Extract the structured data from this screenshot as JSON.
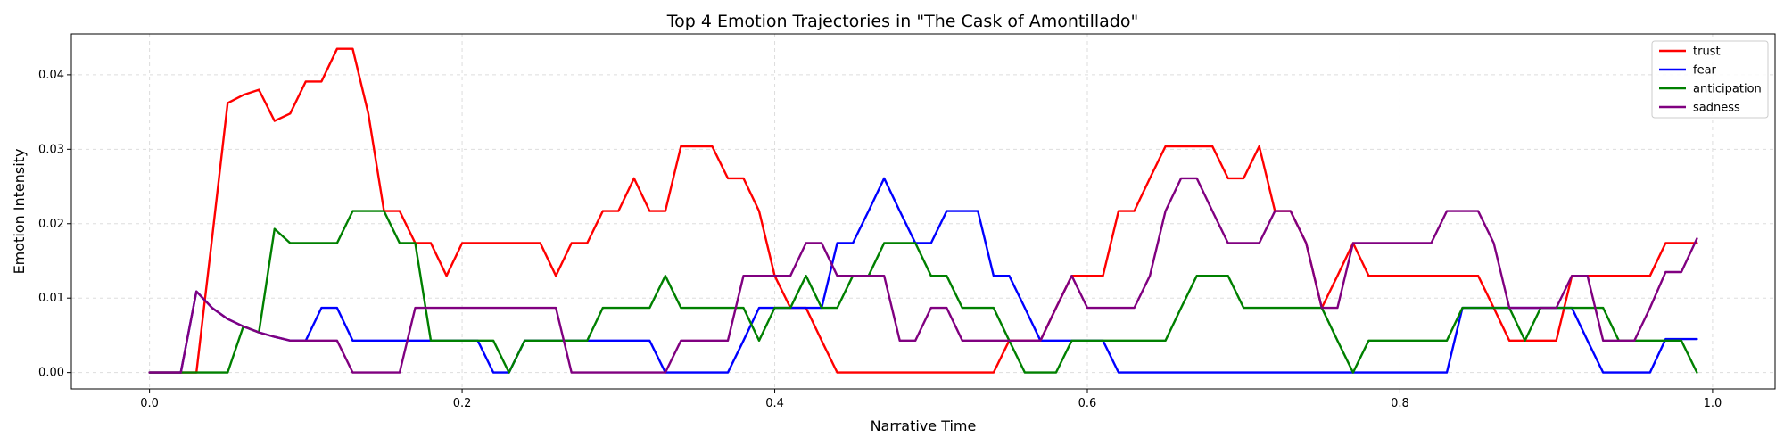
{
  "chart_data": {
    "type": "line",
    "title": "Top 4 Emotion Trajectories in \"The Cask of Amontillado\"",
    "xlabel": "Narrative Time",
    "ylabel": "Emotion Intensity",
    "xlim": [
      -0.05,
      1.04
    ],
    "ylim": [
      -0.0022,
      0.0455
    ],
    "xticks": [
      0.0,
      0.2,
      0.4,
      0.6,
      0.8,
      1.0
    ],
    "xtick_labels": [
      "0.0",
      "0.2",
      "0.4",
      "0.6",
      "0.8",
      "1.0"
    ],
    "yticks": [
      0.0,
      0.01,
      0.02,
      0.03,
      0.04
    ],
    "ytick_labels": [
      "0.00",
      "0.01",
      "0.02",
      "0.03",
      "0.04"
    ],
    "grid": true,
    "legend_position": "top-right",
    "x": [
      0.0,
      0.01,
      0.02,
      0.03,
      0.04,
      0.05,
      0.06,
      0.07,
      0.08,
      0.09,
      0.1,
      0.11,
      0.12,
      0.13,
      0.14,
      0.15,
      0.16,
      0.17,
      0.18,
      0.19,
      0.2,
      0.21,
      0.22,
      0.23,
      0.24,
      0.25,
      0.26,
      0.27,
      0.28,
      0.29,
      0.3,
      0.31,
      0.32,
      0.33,
      0.34,
      0.35,
      0.36,
      0.37,
      0.38,
      0.39,
      0.4,
      0.41,
      0.42,
      0.43,
      0.44,
      0.45,
      0.46,
      0.47,
      0.48,
      0.49,
      0.5,
      0.51,
      0.52,
      0.53,
      0.54,
      0.55,
      0.56,
      0.57,
      0.58,
      0.59,
      0.6,
      0.61,
      0.62,
      0.63,
      0.64,
      0.65,
      0.66,
      0.67,
      0.68,
      0.69,
      0.7,
      0.71,
      0.72,
      0.73,
      0.74,
      0.75,
      0.76,
      0.77,
      0.78,
      0.79,
      0.8,
      0.81,
      0.82,
      0.83,
      0.84,
      0.85,
      0.86,
      0.87,
      0.88,
      0.89,
      0.9,
      0.91,
      0.92,
      0.93,
      0.94,
      0.95,
      0.96,
      0.97,
      0.98,
      0.99
    ],
    "series": [
      {
        "name": "trust",
        "color": "#ff0000",
        "values": [
          0,
          0,
          0,
          0,
          0.018,
          0.0362,
          0.0373,
          0.038,
          0.0338,
          0.0348,
          0.0391,
          0.0391,
          0.0435,
          0.0435,
          0.0348,
          0.0217,
          0.0217,
          0.0174,
          0.0174,
          0.013,
          0.0174,
          0.0174,
          0.0174,
          0.0174,
          0.0174,
          0.0174,
          0.013,
          0.0174,
          0.0174,
          0.0217,
          0.0217,
          0.0261,
          0.0217,
          0.0217,
          0.0304,
          0.0304,
          0.0304,
          0.0261,
          0.0261,
          0.0217,
          0.013,
          0.0087,
          0.0087,
          0.0043,
          0,
          0,
          0,
          0,
          0,
          0,
          0,
          0,
          0,
          0,
          0,
          0.0043,
          0.0043,
          0.0043,
          0.0087,
          0.013,
          0.013,
          0.013,
          0.0217,
          0.0217,
          0.0261,
          0.0304,
          0.0304,
          0.0304,
          0.0304,
          0.0261,
          0.0261,
          0.0304,
          0.0217,
          0.0217,
          0.0174,
          0.0087,
          0.013,
          0.0174,
          0.013,
          0.013,
          0.013,
          0.013,
          0.013,
          0.013,
          0.013,
          0.013,
          0.0087,
          0.0043,
          0.0043,
          0.0043,
          0.0043,
          0.013,
          0.013,
          0.013,
          0.013,
          0.013,
          0.013,
          0.0174,
          0.0174,
          0.0174
        ]
      },
      {
        "name": "fear",
        "color": "#0000ff",
        "values": [
          0,
          0,
          0,
          0.0109,
          0.0087,
          0.0072,
          0.0062,
          0.0054,
          0.0048,
          0.0043,
          0.0043,
          0.0087,
          0.0087,
          0.0043,
          0.0043,
          0.0043,
          0.0043,
          0.0043,
          0.0043,
          0.0043,
          0.0043,
          0.0043,
          0,
          0,
          0.0043,
          0.0043,
          0.0043,
          0.0043,
          0.0043,
          0.0043,
          0.0043,
          0.0043,
          0.0043,
          0,
          0,
          0,
          0,
          0,
          0.0043,
          0.0087,
          0.0087,
          0.0087,
          0.0087,
          0.0087,
          0.0174,
          0.0174,
          0.0217,
          0.0261,
          0.0217,
          0.0174,
          0.0174,
          0.0217,
          0.0217,
          0.0217,
          0.013,
          0.013,
          0.0087,
          0.0043,
          0.0043,
          0.0043,
          0.0043,
          0.0043,
          0,
          0,
          0,
          0,
          0,
          0,
          0,
          0,
          0,
          0,
          0,
          0,
          0,
          0,
          0,
          0,
          0,
          0,
          0,
          0,
          0,
          0,
          0.0087,
          0.0087,
          0.0087,
          0.0087,
          0.0087,
          0.0087,
          0.0087,
          0.0087,
          0.0043,
          0,
          0,
          0,
          0,
          0.0045,
          0.0045,
          0.0045
        ]
      },
      {
        "name": "anticipation",
        "color": "#008000",
        "values": [
          0,
          0,
          0,
          0,
          0,
          0,
          0.0062,
          0.0054,
          0.0193,
          0.0174,
          0.0174,
          0.0174,
          0.0174,
          0.0217,
          0.0217,
          0.0217,
          0.0174,
          0.0174,
          0.0043,
          0.0043,
          0.0043,
          0.0043,
          0.0043,
          0,
          0.0043,
          0.0043,
          0.0043,
          0.0043,
          0.0043,
          0.0087,
          0.0087,
          0.0087,
          0.0087,
          0.013,
          0.0087,
          0.0087,
          0.0087,
          0.0087,
          0.0087,
          0.0043,
          0.0087,
          0.0087,
          0.013,
          0.0087,
          0.0087,
          0.013,
          0.013,
          0.0174,
          0.0174,
          0.0174,
          0.013,
          0.013,
          0.0087,
          0.0087,
          0.0087,
          0.0043,
          0,
          0,
          0,
          0.0043,
          0.0043,
          0.0043,
          0.0043,
          0.0043,
          0.0043,
          0.0043,
          0.0087,
          0.013,
          0.013,
          0.013,
          0.0087,
          0.0087,
          0.0087,
          0.0087,
          0.0087,
          0.0087,
          0.0043,
          0,
          0.0043,
          0.0043,
          0.0043,
          0.0043,
          0.0043,
          0.0043,
          0.0087,
          0.0087,
          0.0087,
          0.0087,
          0.0043,
          0.0087,
          0.0087,
          0.0087,
          0.0087,
          0.0087,
          0.0043,
          0.0043,
          0.0043,
          0.0043,
          0.0043,
          0
        ]
      },
      {
        "name": "sadness",
        "color": "#800080",
        "values": [
          0,
          0,
          0,
          0.0109,
          0.0087,
          0.0072,
          0.0062,
          0.0054,
          0.0048,
          0.0043,
          0.0043,
          0.0043,
          0.0043,
          0,
          0,
          0,
          0,
          0.0087,
          0.0087,
          0.0087,
          0.0087,
          0.0087,
          0.0087,
          0.0087,
          0.0087,
          0.0087,
          0.0087,
          0,
          0,
          0,
          0,
          0,
          0,
          0,
          0.0043,
          0.0043,
          0.0043,
          0.0043,
          0.013,
          0.013,
          0.013,
          0.013,
          0.0174,
          0.0174,
          0.013,
          0.013,
          0.013,
          0.013,
          0.0043,
          0.0043,
          0.0087,
          0.0087,
          0.0043,
          0.0043,
          0.0043,
          0.0043,
          0.0043,
          0.0043,
          0.0087,
          0.013,
          0.0087,
          0.0087,
          0.0087,
          0.0087,
          0.013,
          0.0217,
          0.0261,
          0.0261,
          0.0217,
          0.0174,
          0.0174,
          0.0174,
          0.0217,
          0.0217,
          0.0174,
          0.0087,
          0.0087,
          0.0174,
          0.0174,
          0.0174,
          0.0174,
          0.0174,
          0.0174,
          0.0217,
          0.0217,
          0.0217,
          0.0174,
          0.0087,
          0.0087,
          0.0087,
          0.0087,
          0.013,
          0.013,
          0.0043,
          0.0043,
          0.0043,
          0.0087,
          0.0135,
          0.0135,
          0.018
        ]
      }
    ]
  }
}
